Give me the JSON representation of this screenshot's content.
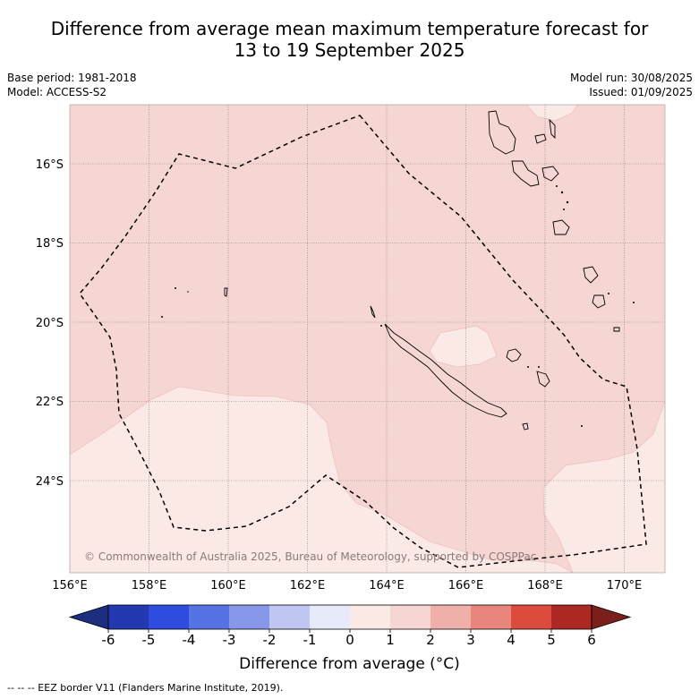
{
  "title_line1": "Difference from average mean maximum temperature forecast for",
  "title_line2": "13 to 19 September 2025",
  "meta_left": [
    "Base period: 1981-2018",
    "Model: ACCESS-S2"
  ],
  "meta_right": [
    "Model run: 30/08/2025",
    "Issued: 01/09/2025"
  ],
  "lat_labels": [
    "16°S",
    "18°S",
    "20°S",
    "22°S",
    "24°S"
  ],
  "lon_labels": [
    "156°E",
    "158°E",
    "160°E",
    "162°E",
    "164°E",
    "166°E",
    "168°E",
    "170°E"
  ],
  "copyright": "© Commonwealth of Australia 2025, Bureau of Meteorology, supported by COSPPac",
  "colorbar": {
    "title": "Difference from average (°C)",
    "ticks": [
      "-6",
      "-5",
      "-4",
      "-3",
      "-2",
      "-1",
      "0",
      "1",
      "2",
      "3",
      "4",
      "5",
      "6"
    ],
    "colors": [
      "#1c2e80",
      "#2339b0",
      "#2f4ce0",
      "#5673e6",
      "#8797ea",
      "#c0c6f3",
      "#e6eaf9",
      "#fbe9e6",
      "#f5d6d3",
      "#efb0aa",
      "#e8857c",
      "#dc4b3e",
      "#ab2922",
      "#7a1f1a"
    ]
  },
  "map_colors": {
    "band_0_1": "#fbe9e6",
    "band_1_2": "#f5d6d3"
  },
  "footnote": "-- -- -- EEZ border V11 (Flanders Marine Institute, 2019)."
}
